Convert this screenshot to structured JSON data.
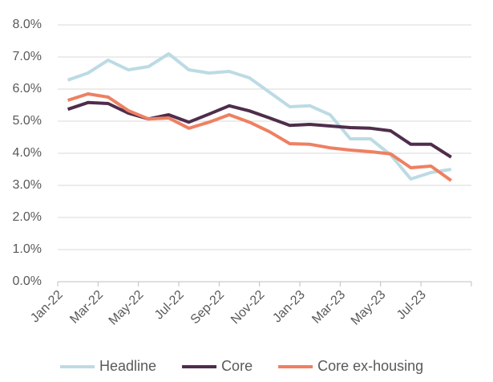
{
  "chart_data": {
    "type": "line",
    "categories": [
      "Jan-22",
      null,
      "Mar-22",
      null,
      "May-22",
      null,
      "Jul-22",
      null,
      "Sep-22",
      null,
      "Nov-22",
      null,
      "Jan-23",
      null,
      "Mar-23",
      null,
      "May-23",
      null,
      "Jul-23",
      null
    ],
    "series": [
      {
        "name": "Headline",
        "color": "#bcdbe4",
        "values": [
          6.28,
          6.5,
          6.9,
          6.6,
          6.7,
          7.1,
          6.6,
          6.5,
          6.55,
          6.35,
          5.9,
          5.45,
          5.48,
          5.2,
          4.45,
          4.45,
          3.95,
          3.2,
          3.4,
          3.5
        ]
      },
      {
        "name": "Core",
        "color": "#4f2d4b",
        "values": [
          5.37,
          5.58,
          5.55,
          5.25,
          5.07,
          5.2,
          4.97,
          5.22,
          5.48,
          5.32,
          5.1,
          4.87,
          4.9,
          4.85,
          4.8,
          4.78,
          4.7,
          4.28,
          4.28,
          3.88
        ]
      },
      {
        "name": "Core ex-housing",
        "color": "#ee8062",
        "values": [
          5.65,
          5.85,
          5.75,
          5.33,
          5.07,
          5.1,
          4.78,
          4.97,
          5.2,
          4.97,
          4.67,
          4.3,
          4.28,
          4.17,
          4.1,
          4.05,
          3.98,
          3.55,
          3.6,
          3.15
        ]
      }
    ],
    "ylim": [
      0,
      8
    ],
    "yticks": [
      {
        "value": 0,
        "label": "0.0%"
      },
      {
        "value": 1,
        "label": "1.0%"
      },
      {
        "value": 2,
        "label": "2.0%"
      },
      {
        "value": 3,
        "label": "3.0%"
      },
      {
        "value": 4,
        "label": "4.0%"
      },
      {
        "value": 5,
        "label": "5.0%"
      },
      {
        "value": 6,
        "label": "6.0%"
      },
      {
        "value": 7,
        "label": "7.0%"
      },
      {
        "value": 8,
        "label": "8.0%"
      }
    ],
    "grid": true,
    "legend": "bottom"
  }
}
